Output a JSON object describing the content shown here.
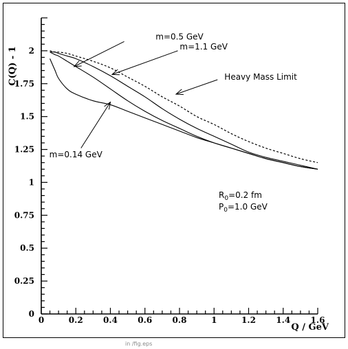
{
  "chart_data": {
    "type": "line",
    "title": "",
    "xlabel": "Q / GeV",
    "ylabel": "C(Q) - 1",
    "xlim": [
      0,
      1.6
    ],
    "ylim": [
      0,
      2.25
    ],
    "xticks": [
      "0",
      "0.2",
      "0.4",
      "0.6",
      "0.8",
      "1",
      "1.2",
      "1.4",
      "1.6"
    ],
    "xtick_values": [
      0,
      0.2,
      0.4,
      0.6,
      0.8,
      1.0,
      1.2,
      1.4,
      1.6
    ],
    "yticks": [
      "0",
      "0.25",
      "0.5",
      "0.75",
      "1",
      "1.25",
      "1.5",
      "1.75",
      "2"
    ],
    "ytick_values": [
      0,
      0.25,
      0.5,
      0.75,
      1.0,
      1.25,
      1.5,
      1.75,
      2.0
    ],
    "grid": false,
    "series": [
      {
        "name": "m=0.14 GeV",
        "style": "solid",
        "x": [
          0.05,
          0.08,
          0.1,
          0.15,
          0.2,
          0.3,
          0.4,
          0.5,
          0.6,
          0.7,
          0.8,
          0.9,
          1.0,
          1.1,
          1.2,
          1.3,
          1.4,
          1.5,
          1.6
        ],
        "y": [
          1.94,
          1.85,
          1.79,
          1.71,
          1.67,
          1.62,
          1.59,
          1.54,
          1.49,
          1.44,
          1.39,
          1.34,
          1.3,
          1.26,
          1.22,
          1.18,
          1.15,
          1.12,
          1.1
        ]
      },
      {
        "name": "m=0.5 GeV",
        "style": "solid",
        "x": [
          0.05,
          0.08,
          0.1,
          0.15,
          0.2,
          0.3,
          0.4,
          0.5,
          0.6,
          0.7,
          0.8,
          0.9,
          1.0,
          1.1,
          1.2,
          1.3,
          1.4,
          1.5,
          1.6
        ],
        "y": [
          1.99,
          1.97,
          1.96,
          1.92,
          1.88,
          1.8,
          1.71,
          1.62,
          1.54,
          1.47,
          1.41,
          1.35,
          1.3,
          1.26,
          1.22,
          1.18,
          1.15,
          1.12,
          1.1
        ]
      },
      {
        "name": "m=1.1 GeV",
        "style": "solid",
        "x": [
          0.05,
          0.08,
          0.1,
          0.15,
          0.2,
          0.3,
          0.4,
          0.5,
          0.6,
          0.7,
          0.8,
          0.9,
          1.0,
          1.1,
          1.2,
          1.3,
          1.4,
          1.5,
          1.6
        ],
        "y": [
          1.99,
          1.99,
          1.98,
          1.96,
          1.94,
          1.88,
          1.81,
          1.73,
          1.65,
          1.56,
          1.48,
          1.41,
          1.35,
          1.29,
          1.23,
          1.19,
          1.16,
          1.13,
          1.1
        ]
      },
      {
        "name": "Heavy Mass Limit",
        "style": "dashed",
        "x": [
          0.05,
          0.08,
          0.1,
          0.15,
          0.2,
          0.3,
          0.4,
          0.5,
          0.6,
          0.7,
          0.8,
          0.9,
          1.0,
          1.1,
          1.2,
          1.3,
          1.4,
          1.5,
          1.6
        ],
        "y": [
          2.0,
          1.99,
          1.99,
          1.98,
          1.96,
          1.92,
          1.87,
          1.8,
          1.73,
          1.65,
          1.58,
          1.5,
          1.44,
          1.37,
          1.31,
          1.26,
          1.22,
          1.18,
          1.15
        ]
      }
    ],
    "annotations": [
      {
        "id": "m050",
        "text": "m=0.5 GeV",
        "text_x": 0.8,
        "text_y": 2.085,
        "arrow_from": [
          0.48,
          2.07
        ],
        "arrow_to": [
          0.19,
          1.88
        ]
      },
      {
        "id": "m110",
        "text": "m=1.1 GeV",
        "text_x": 0.94,
        "text_y": 2.01,
        "arrow_from": [
          0.79,
          2.0
        ],
        "arrow_to": [
          0.41,
          1.82
        ]
      },
      {
        "id": "hml",
        "text": "Heavy Mass Limit",
        "text_x": 1.27,
        "text_y": 1.78,
        "arrow_from": [
          1.02,
          1.78
        ],
        "arrow_to": [
          0.78,
          1.67
        ]
      },
      {
        "id": "m014",
        "text": "m=0.14 GeV",
        "text_x": 0.2,
        "text_y": 1.19,
        "arrow_from": [
          0.23,
          1.26
        ],
        "arrow_to": [
          0.4,
          1.61
        ]
      }
    ],
    "params": {
      "r_main": "R",
      "r_sub": "0",
      "r_rest": "=0.2 fm",
      "p_main": "P",
      "p_sub": "0",
      "p_rest": "=1.0 GeV"
    },
    "footer_text": "in /fig.eps"
  }
}
